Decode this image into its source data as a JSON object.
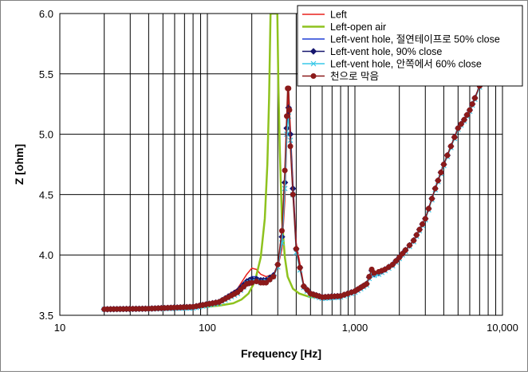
{
  "chart_data": {
    "type": "line",
    "xlabel": "Frequency [Hz]",
    "ylabel": "Z [ohm]",
    "xscale": "log",
    "xlim": [
      10,
      10000
    ],
    "ylim": [
      3.5,
      6.0
    ],
    "grid": true,
    "legend_position": "top-right",
    "x_ticks": [
      {
        "value": 10,
        "label": "10"
      },
      {
        "value": 100,
        "label": "100"
      },
      {
        "value": 1000,
        "label": "1,000"
      },
      {
        "value": 10000,
        "label": "10,000"
      }
    ],
    "y_ticks": [
      {
        "value": 3.5,
        "label": "3.5"
      },
      {
        "value": 4.0,
        "label": "4.0"
      },
      {
        "value": 4.5,
        "label": "4.5"
      },
      {
        "value": 5.0,
        "label": "5.0"
      },
      {
        "value": 5.5,
        "label": "5.5"
      },
      {
        "value": 6.0,
        "label": "6.0"
      }
    ],
    "series": [
      {
        "name": "Left",
        "color": "#e8201c",
        "marker": "none",
        "x": [
          20,
          40,
          80,
          120,
          160,
          185,
          200,
          215,
          230,
          250,
          280,
          300,
          320,
          335,
          345,
          355,
          365,
          380,
          400,
          450,
          500,
          600,
          800,
          1000,
          1200,
          1300,
          1350,
          1450,
          1600,
          1800,
          2000,
          2200,
          2500,
          3000,
          3500,
          4000,
          5000,
          5500,
          6000,
          6500,
          7000,
          8000
        ],
        "y": [
          3.55,
          3.555,
          3.57,
          3.62,
          3.72,
          3.84,
          3.89,
          3.88,
          3.84,
          3.82,
          3.84,
          3.9,
          4.05,
          4.45,
          4.95,
          5.35,
          5.05,
          4.6,
          4.1,
          3.75,
          3.68,
          3.65,
          3.66,
          3.7,
          3.76,
          3.88,
          3.85,
          3.86,
          3.88,
          3.92,
          3.98,
          4.04,
          4.12,
          4.3,
          4.55,
          4.75,
          5.05,
          5.12,
          5.2,
          5.3,
          5.4,
          5.6
        ]
      },
      {
        "name": "Left-open air",
        "color": "#8ec21e",
        "marker": "none",
        "x": [
          20,
          40,
          80,
          120,
          150,
          170,
          190,
          210,
          230,
          245,
          255,
          262,
          268,
          275,
          282,
          288,
          293,
          298,
          303,
          310,
          320,
          335,
          350,
          380,
          420,
          500,
          600,
          800,
          1000
        ],
        "y": [
          3.55,
          3.555,
          3.56,
          3.58,
          3.6,
          3.63,
          3.68,
          3.78,
          3.98,
          4.3,
          4.75,
          5.3,
          6.0,
          6.0,
          6.0,
          6.0,
          6.0,
          6.0,
          5.4,
          4.85,
          4.3,
          3.98,
          3.82,
          3.72,
          3.68,
          3.65,
          3.65,
          3.67,
          3.7
        ]
      },
      {
        "name": "Left-vent hole, 절연테이프로 50% close",
        "color": "#1f3fd6",
        "marker": "none",
        "x": [
          20,
          40,
          80,
          120,
          160,
          185,
          200,
          215,
          230,
          250,
          280,
          300,
          320,
          335,
          345,
          355,
          365,
          380,
          400,
          450,
          500,
          600,
          800,
          1000,
          1200,
          1300,
          1350,
          1450,
          1600,
          1800,
          2000,
          2200,
          2500,
          3000,
          3500,
          4000,
          5000,
          5500,
          6000,
          6500,
          7000,
          8000
        ],
        "y": [
          3.55,
          3.555,
          3.57,
          3.61,
          3.7,
          3.79,
          3.82,
          3.82,
          3.8,
          3.8,
          3.83,
          3.9,
          4.1,
          4.55,
          5.0,
          5.2,
          5.0,
          4.55,
          4.05,
          3.74,
          3.68,
          3.65,
          3.66,
          3.7,
          3.76,
          3.87,
          3.84,
          3.85,
          3.88,
          3.92,
          3.98,
          4.04,
          4.12,
          4.3,
          4.55,
          4.75,
          5.05,
          5.12,
          5.2,
          5.3,
          5.4,
          5.6
        ]
      },
      {
        "name": "Left-vent hole, 90% close",
        "color": "#16166e",
        "marker": "diamond",
        "x": [
          20,
          40,
          80,
          120,
          160,
          185,
          200,
          215,
          230,
          250,
          280,
          300,
          320,
          335,
          345,
          355,
          365,
          380,
          400,
          450,
          500,
          600,
          800,
          1000,
          1200,
          1300,
          1350,
          1450,
          1600,
          1800,
          2000,
          2200,
          2500,
          3000,
          3500,
          4000,
          5000,
          5500,
          6000,
          6500,
          7000,
          8000
        ],
        "y": [
          3.55,
          3.555,
          3.57,
          3.61,
          3.7,
          3.78,
          3.8,
          3.8,
          3.79,
          3.79,
          3.83,
          3.92,
          4.15,
          4.6,
          5.05,
          5.22,
          5.0,
          4.55,
          4.05,
          3.74,
          3.68,
          3.65,
          3.66,
          3.7,
          3.76,
          3.87,
          3.84,
          3.85,
          3.88,
          3.92,
          3.98,
          4.04,
          4.12,
          4.3,
          4.55,
          4.75,
          5.05,
          5.12,
          5.2,
          5.3,
          5.4,
          5.6
        ]
      },
      {
        "name": "Left-vent hole, 안쪽에서 60% close",
        "color": "#38c8e8",
        "marker": "x",
        "x": [
          20,
          40,
          80,
          120,
          160,
          185,
          200,
          215,
          230,
          250,
          280,
          300,
          320,
          335,
          345,
          355,
          365,
          380,
          400,
          450,
          500,
          600,
          800,
          1000,
          1200,
          1300,
          1350,
          1450,
          1600,
          1800,
          2000,
          2200,
          2500,
          3000,
          3500,
          4000,
          5000,
          5500,
          6000,
          6500,
          7000,
          8000
        ],
        "y": [
          3.55,
          3.555,
          3.56,
          3.6,
          3.68,
          3.76,
          3.78,
          3.78,
          3.77,
          3.78,
          3.82,
          3.9,
          4.1,
          4.55,
          5.0,
          5.15,
          4.95,
          4.5,
          4.02,
          3.73,
          3.67,
          3.64,
          3.65,
          3.69,
          3.75,
          3.86,
          3.83,
          3.84,
          3.87,
          3.91,
          3.97,
          4.03,
          4.11,
          4.29,
          4.54,
          4.74,
          5.04,
          5.11,
          5.19,
          5.29,
          5.39,
          5.59
        ]
      },
      {
        "name": "천으로 막음",
        "color": "#8b1a1a",
        "marker": "circle",
        "x": [
          20,
          40,
          80,
          120,
          160,
          185,
          200,
          215,
          230,
          250,
          280,
          300,
          320,
          335,
          345,
          350,
          355,
          360,
          365,
          380,
          400,
          450,
          500,
          600,
          800,
          1000,
          1200,
          1300,
          1350,
          1450,
          1600,
          1800,
          2000,
          2200,
          2500,
          3000,
          3500,
          4000,
          5000,
          5500,
          6000,
          6500,
          7000,
          8000
        ],
        "y": [
          3.55,
          3.555,
          3.57,
          3.61,
          3.69,
          3.76,
          3.77,
          3.78,
          3.77,
          3.77,
          3.82,
          3.92,
          4.2,
          4.7,
          5.15,
          5.38,
          5.38,
          5.2,
          4.9,
          4.5,
          4.05,
          3.74,
          3.68,
          3.65,
          3.66,
          3.7,
          3.76,
          3.88,
          3.85,
          3.86,
          3.88,
          3.92,
          3.98,
          4.04,
          4.12,
          4.3,
          4.55,
          4.75,
          5.05,
          5.12,
          5.2,
          5.3,
          5.4,
          5.6
        ]
      }
    ]
  }
}
